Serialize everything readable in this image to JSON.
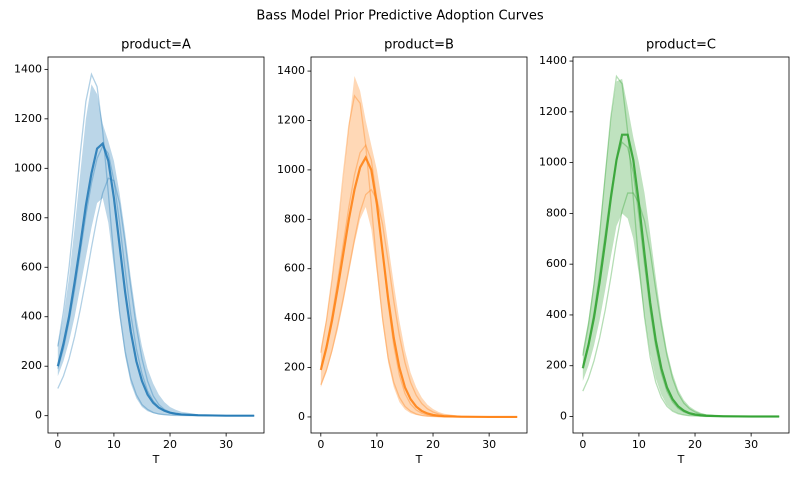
{
  "figure_title": "Bass Model Prior Predictive Adoption Curves",
  "chart_data": [
    {
      "type": "line",
      "title": "product=A",
      "xlabel": "T",
      "color": "#1f77b4",
      "x": [
        0,
        1,
        2,
        3,
        4,
        5,
        6,
        7,
        8,
        9,
        10,
        11,
        12,
        13,
        14,
        15,
        16,
        17,
        18,
        19,
        20,
        21,
        22,
        25,
        30,
        35
      ],
      "xlim": [
        -1.75,
        36.75
      ],
      "ylim": [
        -70,
        1450
      ],
      "xticks": [
        0,
        10,
        20,
        30
      ],
      "yticks": [
        0,
        200,
        400,
        600,
        800,
        1000,
        1200,
        1400
      ],
      "band": {
        "lower": [
          160,
          220,
          300,
          400,
          520,
          640,
          760,
          860,
          880,
          780,
          600,
          400,
          240,
          130,
          70,
          35,
          18,
          10,
          5,
          3,
          2,
          1,
          1,
          0,
          0,
          0
        ],
        "upper": [
          290,
          400,
          560,
          760,
          980,
          1200,
          1340,
          1300,
          1180,
          1110,
          1030,
          900,
          740,
          560,
          400,
          280,
          190,
          130,
          85,
          55,
          35,
          24,
          16,
          6,
          1,
          0
        ]
      },
      "mean": [
        200,
        290,
        400,
        540,
        690,
        850,
        980,
        1080,
        1100,
        1030,
        880,
        690,
        500,
        340,
        220,
        140,
        85,
        52,
        32,
        20,
        12,
        8,
        5,
        2,
        0,
        0
      ],
      "samples": [
        [
          280,
          420,
          600,
          820,
          1060,
          1270,
          1380,
          1330,
          1150,
          900,
          640,
          420,
          260,
          150,
          85,
          45,
          25,
          13,
          7,
          4,
          2,
          1,
          1,
          0,
          0,
          0
        ],
        [
          110,
          160,
          230,
          320,
          430,
          550,
          680,
          800,
          900,
          960,
          950,
          860,
          700,
          520,
          360,
          230,
          140,
          80,
          45,
          25,
          14,
          8,
          4,
          1,
          0,
          0
        ],
        [
          190,
          270,
          380,
          510,
          660,
          810,
          940,
          1040,
          1090,
          1060,
          950,
          780,
          590,
          410,
          270,
          170,
          100,
          60,
          35,
          20,
          11,
          6,
          3,
          1,
          0,
          0
        ]
      ]
    },
    {
      "type": "line",
      "title": "product=B",
      "xlabel": "T",
      "color": "#ff7f0e",
      "x": [
        0,
        1,
        2,
        3,
        4,
        5,
        6,
        7,
        8,
        9,
        10,
        11,
        12,
        13,
        14,
        15,
        16,
        17,
        18,
        19,
        20,
        21,
        22,
        25,
        30,
        35
      ],
      "xlim": [
        -1.75,
        36.75
      ],
      "ylim": [
        -65,
        1457
      ],
      "xticks": [
        0,
        10,
        20,
        30
      ],
      "yticks": [
        0,
        200,
        400,
        600,
        800,
        1000,
        1200,
        1400
      ],
      "band": {
        "lower": [
          120,
          180,
          260,
          350,
          460,
          580,
          700,
          800,
          850,
          760,
          580,
          380,
          220,
          120,
          60,
          30,
          15,
          8,
          4,
          2,
          1,
          1,
          0,
          0,
          0,
          0
        ],
        "upper": [
          280,
          400,
          560,
          750,
          960,
          1180,
          1380,
          1320,
          1200,
          1100,
          1000,
          860,
          700,
          540,
          390,
          270,
          180,
          120,
          78,
          50,
          32,
          20,
          13,
          4,
          1,
          0
        ]
      },
      "mean": [
        190,
        280,
        390,
        520,
        660,
        800,
        920,
        1010,
        1050,
        1000,
        860,
        670,
        480,
        320,
        200,
        120,
        72,
        42,
        24,
        14,
        8,
        5,
        3,
        1,
        0,
        0
      ],
      "samples": [
        [
          260,
          390,
          560,
          760,
          980,
          1180,
          1300,
          1270,
          1100,
          860,
          610,
          400,
          240,
          140,
          80,
          43,
          23,
          12,
          6,
          3,
          2,
          1,
          0,
          0,
          0,
          0
        ],
        [
          130,
          190,
          270,
          370,
          480,
          600,
          720,
          830,
          900,
          920,
          880,
          780,
          630,
          470,
          330,
          220,
          140,
          88,
          54,
          33,
          20,
          12,
          7,
          2,
          0,
          0
        ],
        [
          200,
          290,
          410,
          550,
          700,
          850,
          980,
          1070,
          1100,
          1040,
          880,
          670,
          460,
          290,
          170,
          95,
          52,
          28,
          15,
          8,
          4,
          2,
          1,
          0,
          0,
          0
        ]
      ]
    },
    {
      "type": "line",
      "title": "product=C",
      "xlabel": "T",
      "color": "#2ca02c",
      "x": [
        0,
        1,
        2,
        3,
        4,
        5,
        6,
        7,
        8,
        9,
        10,
        11,
        12,
        13,
        14,
        15,
        16,
        17,
        18,
        19,
        20,
        21,
        22,
        25,
        30,
        35
      ],
      "xlim": [
        -1.75,
        36.75
      ],
      "ylim": [
        -65,
        1416
      ],
      "xticks": [
        0,
        10,
        20,
        30
      ],
      "yticks": [
        0,
        200,
        400,
        600,
        800,
        1000,
        1200,
        1400
      ],
      "band": {
        "lower": [
          140,
          200,
          280,
          380,
          500,
          630,
          750,
          800,
          780,
          700,
          560,
          390,
          250,
          150,
          85,
          45,
          23,
          12,
          6,
          3,
          2,
          1,
          0,
          0,
          0,
          0
        ],
        "upper": [
          260,
          380,
          540,
          740,
          970,
          1180,
          1320,
          1330,
          1220,
          1100,
          1000,
          880,
          720,
          550,
          390,
          260,
          170,
          105,
          65,
          40,
          25,
          15,
          9,
          3,
          0,
          0
        ]
      },
      "mean": [
        190,
        280,
        390,
        530,
        690,
        860,
        1010,
        1110,
        1110,
        1010,
        840,
        640,
        450,
        300,
        190,
        115,
        68,
        40,
        23,
        13,
        8,
        5,
        3,
        1,
        0,
        0
      ],
      "samples": [
        [
          240,
          360,
          520,
          720,
          950,
          1180,
          1340,
          1310,
          1120,
          860,
          600,
          390,
          235,
          135,
          75,
          40,
          21,
          11,
          6,
          3,
          2,
          1,
          0,
          0,
          0,
          0
        ],
        [
          100,
          150,
          220,
          310,
          420,
          550,
          690,
          810,
          880,
          880,
          840,
          770,
          650,
          500,
          360,
          240,
          150,
          90,
          53,
          31,
          18,
          10,
          6,
          1,
          0,
          0
        ],
        [
          200,
          290,
          410,
          560,
          720,
          880,
          1010,
          1080,
          1060,
          960,
          790,
          600,
          420,
          275,
          170,
          100,
          57,
          32,
          18,
          10,
          5,
          3,
          2,
          0,
          0,
          0
        ]
      ]
    }
  ]
}
